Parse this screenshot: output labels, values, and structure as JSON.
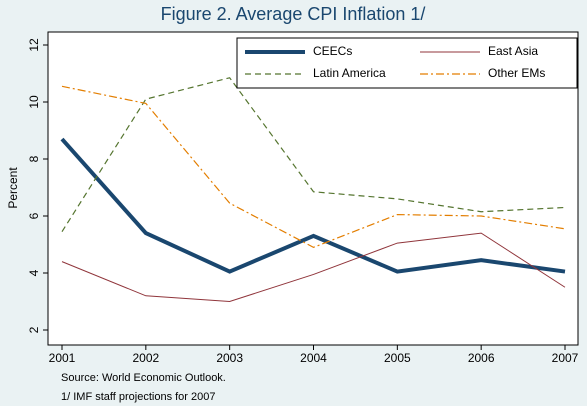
{
  "chart_data": {
    "type": "line",
    "title": "Figure 2. Average CPI Inflation 1/",
    "y_label": "Percent",
    "notes": [
      "Source: World Economic Outlook.",
      "1/ IMF staff projections for 2007"
    ],
    "x": [
      2001,
      2002,
      2003,
      2004,
      2005,
      2006,
      2007
    ],
    "xlim": [
      2001,
      2007
    ],
    "xticks": [
      2001,
      2002,
      2003,
      2004,
      2005,
      2006,
      2007
    ],
    "ylim": [
      2,
      12
    ],
    "yticks": [
      2,
      4,
      6,
      8,
      10,
      12
    ],
    "legend": "top-right",
    "series": [
      {
        "name": "CEECs",
        "color": "#1a476f",
        "values": [
          8.7,
          5.4,
          4.05,
          5.3,
          4.05,
          4.45,
          4.05
        ]
      },
      {
        "name": "East Asia",
        "color": "#90353b",
        "values": [
          4.4,
          3.2,
          3.0,
          3.95,
          5.05,
          5.4,
          3.5
        ]
      },
      {
        "name": "Latin America",
        "color": "#55752f",
        "values": [
          5.45,
          10.1,
          10.85,
          6.85,
          6.6,
          6.15,
          6.3
        ]
      },
      {
        "name": "Other EMs",
        "color": "#e37e00",
        "values": [
          10.55,
          9.95,
          6.45,
          4.9,
          6.05,
          6.0,
          5.55
        ]
      }
    ]
  }
}
